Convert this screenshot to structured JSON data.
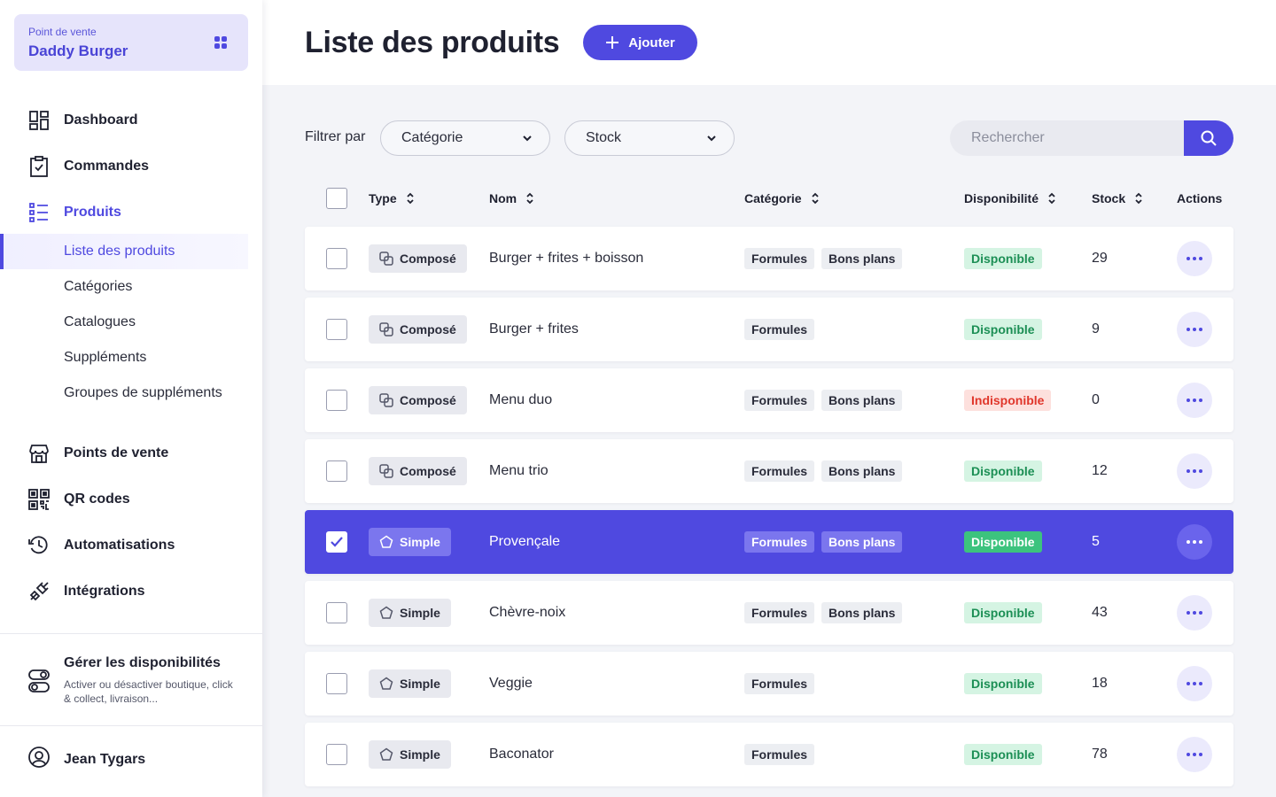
{
  "store": {
    "caption": "Point de vente",
    "name": "Daddy Burger"
  },
  "nav": {
    "dashboard": "Dashboard",
    "orders": "Commandes",
    "products": "Produits",
    "sub": [
      "Liste des produits",
      "Catégories",
      "Catalogues",
      "Suppléments",
      "Groupes de suppléments"
    ],
    "points": "Points de vente",
    "qr": "QR codes",
    "automations": "Automatisations",
    "integrations": "Intégrations"
  },
  "availability": {
    "title": "Gérer les disponibilités",
    "description": "Activer ou désactiver boutique, click & collect, livraison..."
  },
  "user": {
    "name": "Jean Tygars"
  },
  "header": {
    "title": "Liste des produits",
    "add_label": "Ajouter"
  },
  "filters": {
    "label": "Filtrer par",
    "category": "Catégorie",
    "stock": "Stock",
    "search_placeholder": "Rechercher"
  },
  "table": {
    "headers": {
      "type": "Type",
      "name": "Nom",
      "category": "Catégorie",
      "availability": "Disponibilité",
      "stock": "Stock",
      "actions": "Actions"
    },
    "rows": [
      {
        "type": "Composé",
        "name": "Burger + frites + boisson",
        "tags": [
          "Formules",
          "Bons plans"
        ],
        "status": "Disponible",
        "stock": "29"
      },
      {
        "type": "Composé",
        "name": "Burger + frites",
        "tags": [
          "Formules"
        ],
        "status": "Disponible",
        "stock": "9"
      },
      {
        "type": "Composé",
        "name": "Menu duo",
        "tags": [
          "Formules",
          "Bons plans"
        ],
        "status": "Indisponible",
        "stock": "0"
      },
      {
        "type": "Composé",
        "name": "Menu trio",
        "tags": [
          "Formules",
          "Bons plans"
        ],
        "status": "Disponible",
        "stock": "12"
      },
      {
        "type": "Simple",
        "name": "Provençale",
        "tags": [
          "Formules",
          "Bons plans"
        ],
        "status": "Disponible",
        "stock": "5"
      },
      {
        "type": "Simple",
        "name": "Chèvre-noix",
        "tags": [
          "Formules",
          "Bons plans"
        ],
        "status": "Disponible",
        "stock": "43"
      },
      {
        "type": "Simple",
        "name": "Veggie",
        "tags": [
          "Formules"
        ],
        "status": "Disponible",
        "stock": "18"
      },
      {
        "type": "Simple",
        "name": "Baconator",
        "tags": [
          "Formules"
        ],
        "status": "Disponible",
        "stock": "78"
      }
    ]
  },
  "colors": {
    "accent": "#4f49e0",
    "ok": "#1c8f55",
    "ko": "#e0362b"
  }
}
